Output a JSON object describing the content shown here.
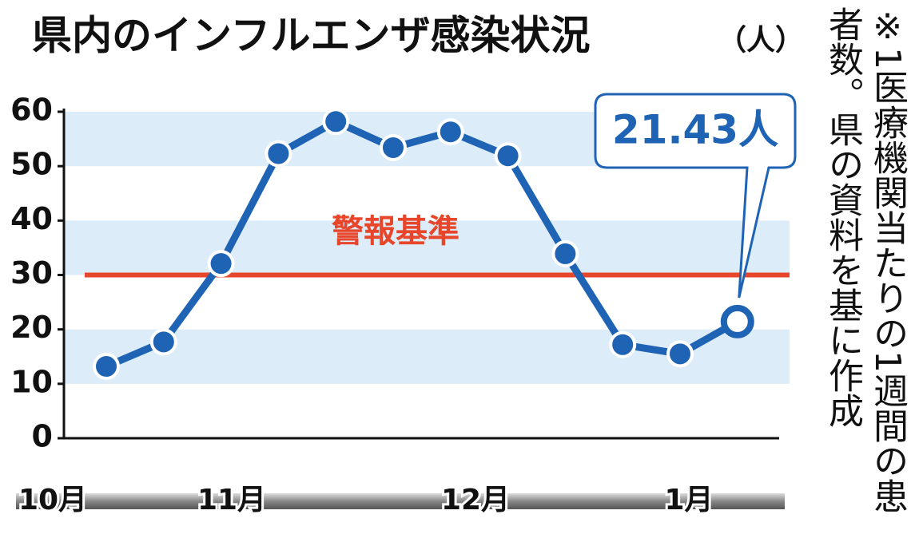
{
  "chart_data": {
    "type": "line",
    "title": "県内のインフルエンザ感染状況",
    "y_unit": "（人）",
    "note": "※1医療機関当たりの1週間の患者数。県の資料を基に作成",
    "month_labels": [
      "10月",
      "11月",
      "12月",
      "1月"
    ],
    "values": [
      13.2,
      17.7,
      32.1,
      52.3,
      58.2,
      53.4,
      56.3,
      51.9,
      33.9,
      17.2,
      15.5,
      21.43
    ],
    "value_labels": [
      null,
      null,
      null,
      null,
      null,
      null,
      null,
      null,
      null,
      null,
      null,
      "21.43人"
    ],
    "color": "#1f63b5",
    "ylim": [
      0,
      60
    ],
    "yticks": [
      0,
      10,
      20,
      30,
      40,
      50,
      60
    ],
    "bands": true,
    "reference_line": {
      "value": 30,
      "label": "警報基準",
      "color": "#e8462a"
    }
  }
}
